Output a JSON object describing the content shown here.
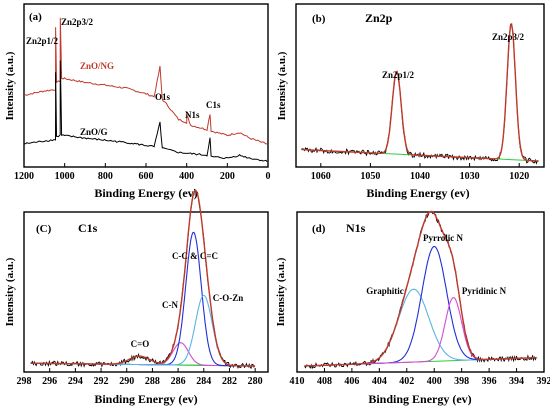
{
  "chart_data": [
    {
      "panel": "(a)",
      "type": "line",
      "xlabel": "Binding Energy (ev)",
      "ylabel": "Intensity (a.u.)",
      "xlim": [
        1200,
        0
      ],
      "x_ticks": [
        "1200",
        "1000",
        "800",
        "600",
        "400",
        "200",
        "0"
      ],
      "annotations": [
        "Zn2p1/2",
        "Zn2p3/2",
        "O1s",
        "N1s",
        "C1s"
      ],
      "series": [
        {
          "name": "ZnO/NG",
          "color": "#c0392b",
          "x": [
            1200,
            1100,
            1045,
            1044.5,
            1040,
            1022,
            1021.5,
            1015,
            900,
            700,
            600,
            560,
            531,
            520,
            500,
            440,
            400,
            399,
            380,
            300,
            285,
            280,
            200,
            140,
            90,
            50,
            10,
            0
          ],
          "y": [
            0.46,
            0.49,
            0.5,
            0.93,
            0.55,
            0.56,
            1.0,
            0.58,
            0.55,
            0.51,
            0.47,
            0.45,
            0.66,
            0.43,
            0.4,
            0.29,
            0.27,
            0.32,
            0.25,
            0.22,
            0.33,
            0.21,
            0.18,
            0.2,
            0.16,
            0.14,
            0.12,
            0.12
          ]
        },
        {
          "name": "ZnO/G",
          "color": "#000000",
          "x": [
            1200,
            1100,
            1045,
            1044.5,
            1040,
            1022,
            1021.5,
            1015,
            900,
            700,
            560,
            531,
            520,
            440,
            300,
            285,
            280,
            200,
            140,
            90,
            10,
            0
          ],
          "y": [
            0.12,
            0.14,
            0.15,
            0.62,
            0.17,
            0.18,
            0.7,
            0.18,
            0.16,
            0.13,
            0.1,
            0.27,
            0.09,
            0.06,
            0.04,
            0.16,
            0.03,
            0.02,
            0.04,
            0.02,
            0.0,
            0.0
          ]
        }
      ]
    },
    {
      "panel": "(b)",
      "title": "Zn2p",
      "type": "line",
      "xlabel": "Binding Energy (ev)",
      "ylabel": "Intensity (a.u.)",
      "xlim": [
        1065,
        1015
      ],
      "x_ticks": [
        "1060",
        "1050",
        "1040",
        "1030",
        "1020"
      ],
      "annotations": [
        "Zn2p1/2",
        "Zn2p3/2"
      ],
      "baseline": {
        "color": "#2ecc40",
        "x": [
          1064,
          1016
        ],
        "y": [
          0.08,
          0.0
        ]
      },
      "peaks": [
        {
          "name": "Zn2p1/2",
          "center": 1044.7,
          "height": 0.58,
          "width": 0.9
        },
        {
          "name": "Zn2p3/2",
          "center": 1021.6,
          "height": 0.95,
          "width": 0.85
        }
      ]
    },
    {
      "panel": "(C)",
      "title": "C1s",
      "type": "line",
      "xlabel": "Binding Energy (ev)",
      "ylabel": "Intensity (a.u.)",
      "xlim": [
        298,
        279
      ],
      "x_ticks": [
        "298",
        "296",
        "294",
        "292",
        "290",
        "288",
        "286",
        "284",
        "282",
        "280"
      ],
      "annotations": [
        "C=O",
        "C-N",
        "C-C & C=C",
        "C-O-Zn"
      ],
      "baseline": {
        "color": "#2ecc40",
        "x": [
          297.5,
          280
        ],
        "y": [
          0.02,
          0.0
        ]
      },
      "peaks": [
        {
          "name": "C=O",
          "center": 289.0,
          "height": 0.06,
          "width": 0.8
        },
        {
          "name": "C-N",
          "center": 285.8,
          "height": 0.16,
          "width": 0.6
        },
        {
          "name": "C-C & C=C",
          "center": 284.8,
          "height": 0.95,
          "width": 0.6
        },
        {
          "name": "C-O-Zn",
          "center": 284.0,
          "height": 0.5,
          "width": 0.65
        }
      ]
    },
    {
      "panel": "(d)",
      "title": "N1s",
      "type": "line",
      "xlabel": "Binding Energy (ev)",
      "ylabel": "Intensity (a.u.)",
      "xlim": [
        410,
        392
      ],
      "x_ticks": [
        "410",
        "408",
        "406",
        "404",
        "402",
        "400",
        "398",
        "396",
        "394",
        "392"
      ],
      "annotations": [
        "Graphitic",
        "Pyrrolic N",
        "Pyridinic N"
      ],
      "baseline": {
        "color": "#2ecc40",
        "x": [
          409.5,
          392.5
        ],
        "y": [
          0.0,
          0.06
        ]
      },
      "peaks": [
        {
          "name": "Graphitic",
          "center": 401.5,
          "height": 0.52,
          "width": 1.1
        },
        {
          "name": "Pyrrolic N",
          "center": 400.0,
          "height": 0.82,
          "width": 0.9
        },
        {
          "name": "Pyridinic N",
          "center": 398.6,
          "height": 0.45,
          "width": 0.6
        }
      ]
    }
  ],
  "colors": {
    "envelope": "#c0392b",
    "raw": "#000000",
    "baseline": "#2ecc40",
    "comp_blue": "#1f2fd6",
    "comp_cyan": "#57b6e6",
    "comp_magenta": "#d04fd0",
    "comp_green": "#2ecc40"
  }
}
